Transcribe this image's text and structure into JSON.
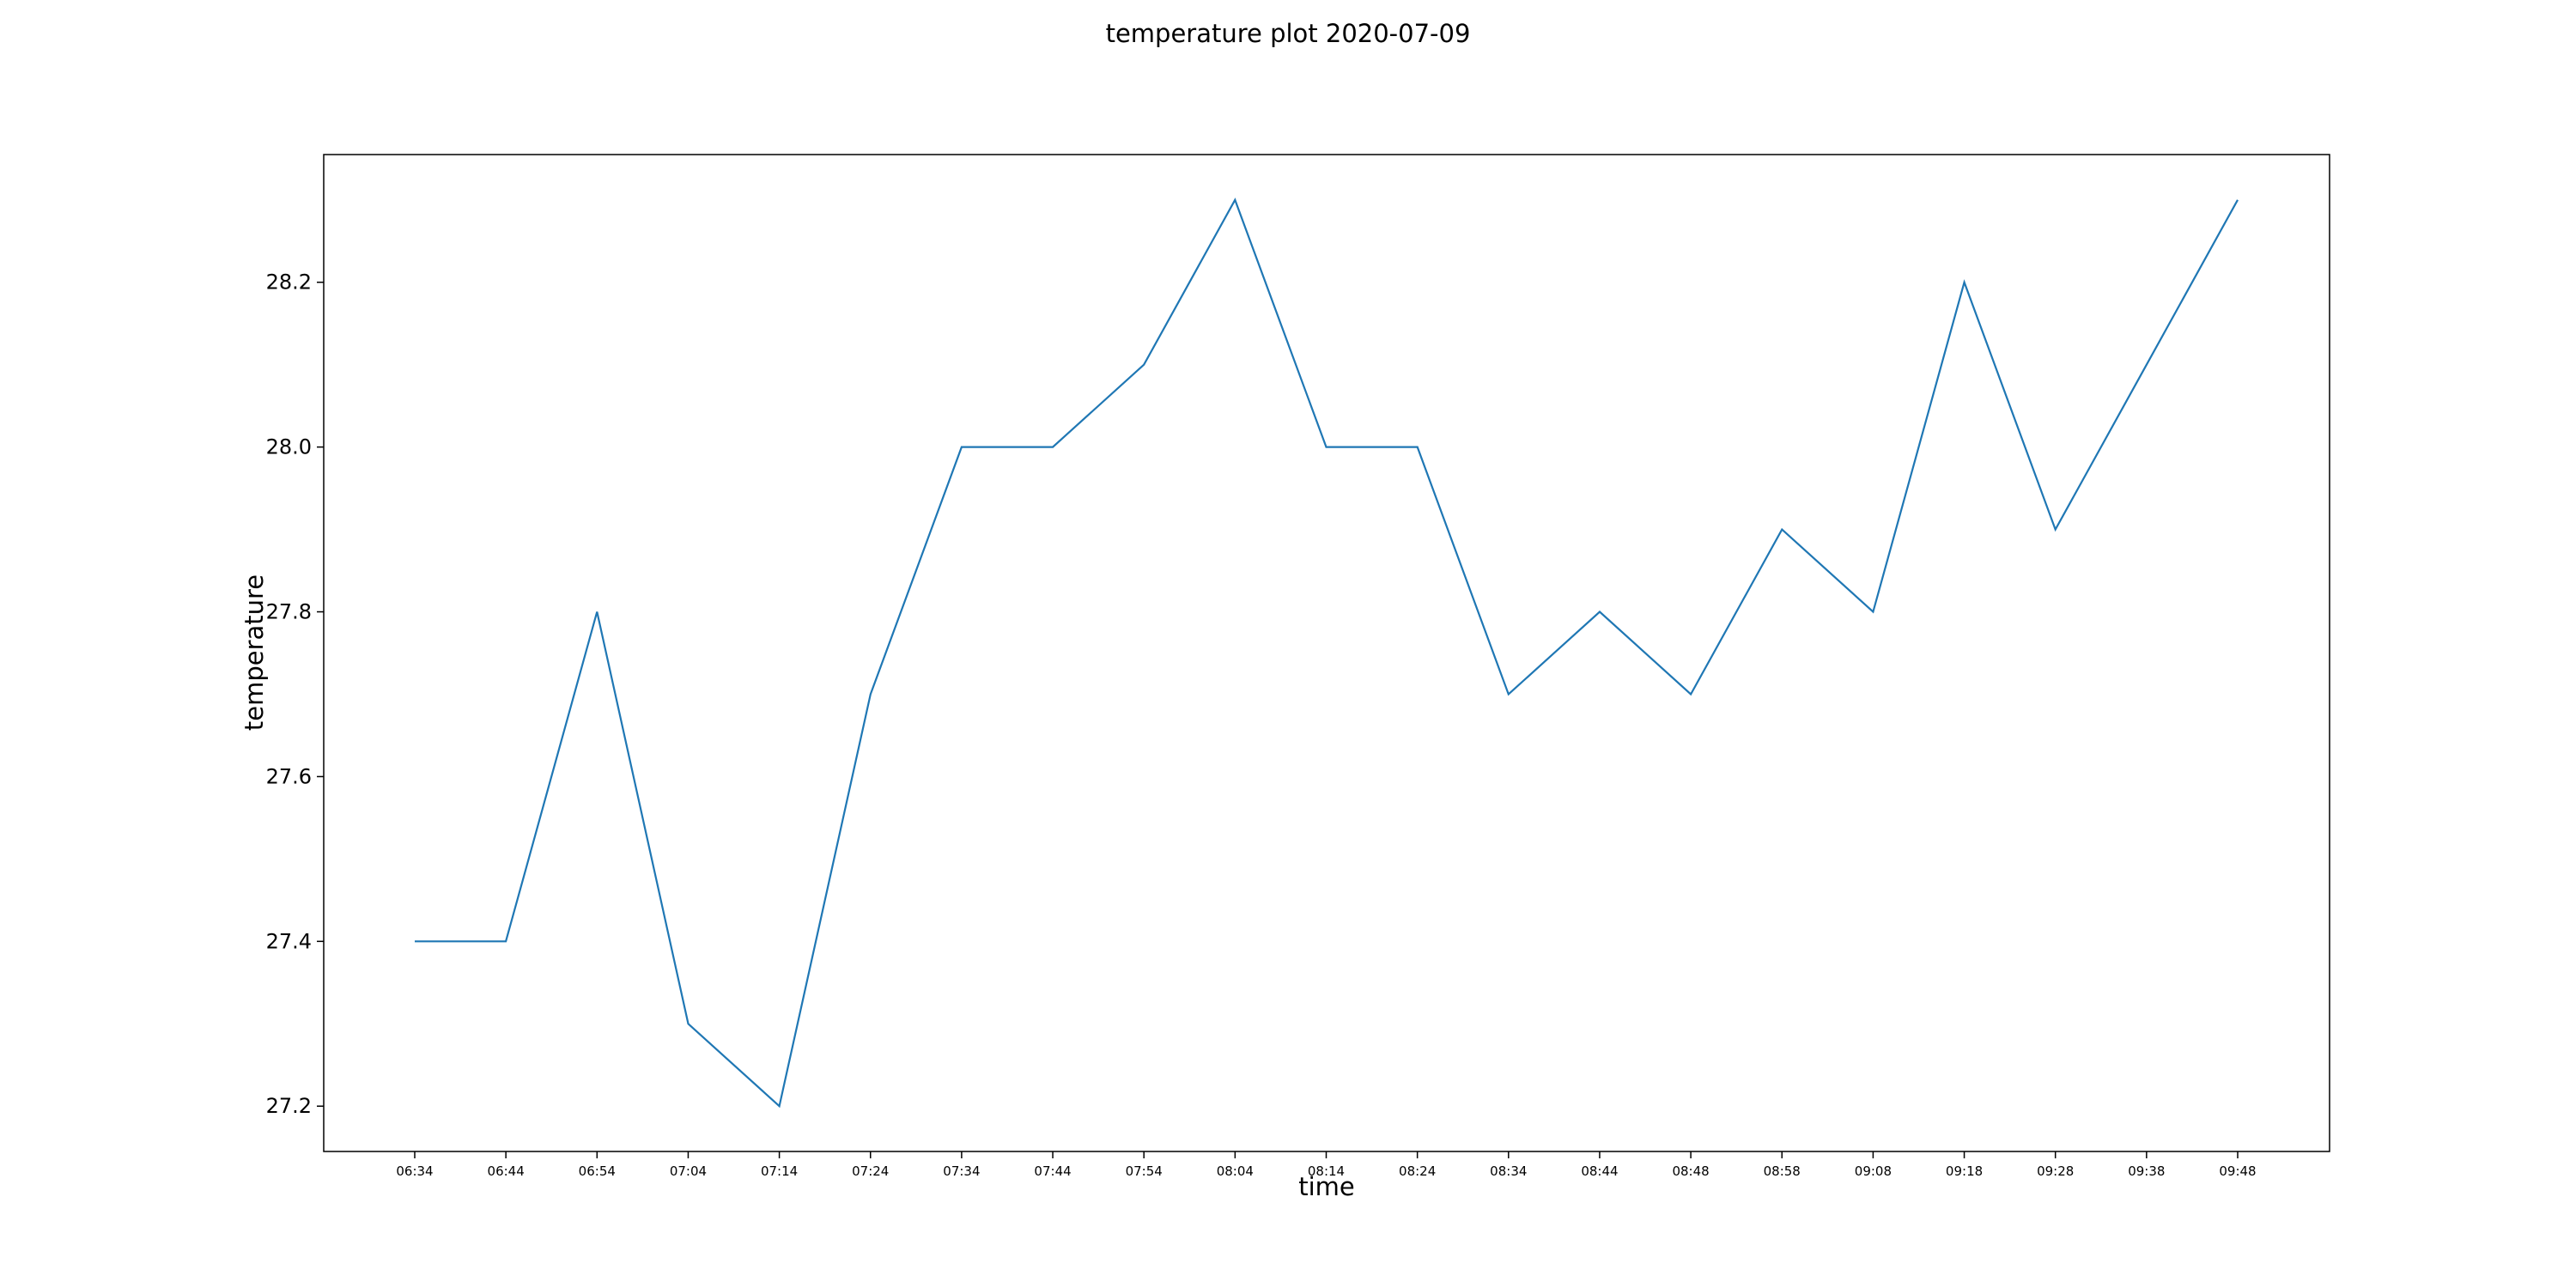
{
  "chart_data": {
    "type": "line",
    "title": "temperature plot 2020-07-09",
    "xlabel": "time",
    "ylabel": "temperature",
    "categories": [
      "06:34",
      "06:44",
      "06:54",
      "07:04",
      "07:14",
      "07:24",
      "07:34",
      "07:44",
      "07:54",
      "08:04",
      "08:14",
      "08:24",
      "08:34",
      "08:44",
      "08:48",
      "08:58",
      "09:08",
      "09:18",
      "09:28",
      "09:38",
      "09:48"
    ],
    "series": [
      {
        "values": [
          27.4,
          27.4,
          27.8,
          27.3,
          27.2,
          27.7,
          28.0,
          28.0,
          28.1,
          28.3,
          28.0,
          28.0,
          27.7,
          27.8,
          27.7,
          27.9,
          27.8,
          28.2,
          27.9,
          28.1,
          28.3
        ],
        "color": "#1f77b4"
      }
    ],
    "yticks": [
      "27.2",
      "27.4",
      "27.6",
      "27.8",
      "28.0",
      "28.2"
    ],
    "ylim": [
      27.145,
      28.355
    ],
    "grid": false,
    "legend": "none"
  }
}
